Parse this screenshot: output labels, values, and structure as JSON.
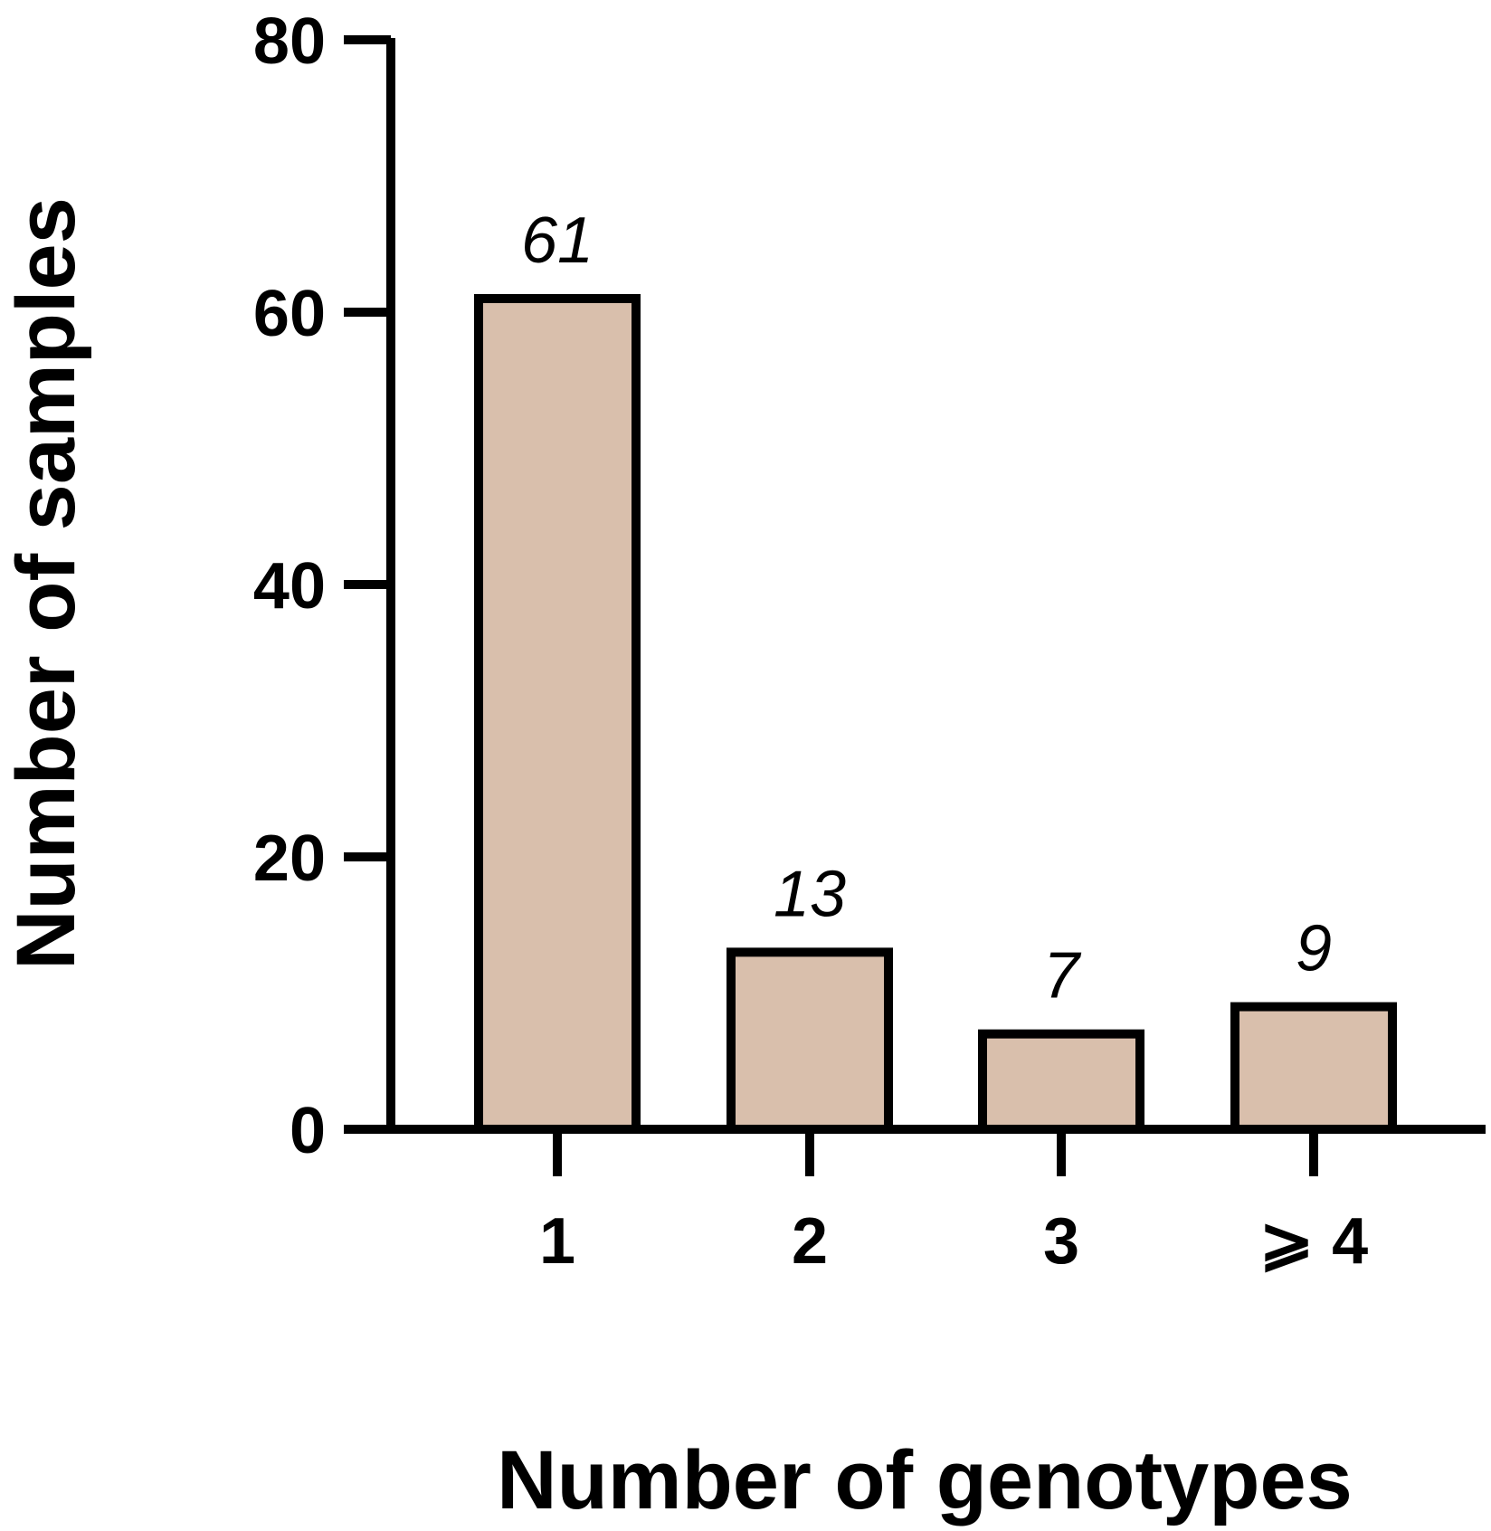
{
  "chart_data": {
    "type": "bar",
    "categories": [
      "1",
      "2",
      "3",
      "⩾ 4"
    ],
    "values": [
      61,
      13,
      7,
      9
    ],
    "data_labels": [
      "61",
      "13",
      "7",
      "9"
    ],
    "xlabel": "Number of genotypes",
    "ylabel": "Number of samples",
    "ylim": [
      0,
      80
    ],
    "yticks": [
      "0",
      "20",
      "40",
      "60",
      "80"
    ],
    "grid": false,
    "bar_color": "#d9bfac",
    "bar_edge_color": "#000000"
  }
}
